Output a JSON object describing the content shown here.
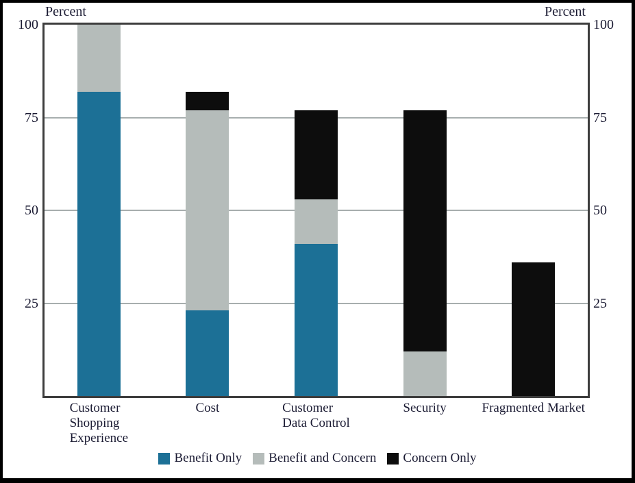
{
  "page": {
    "background_color": "#ffffff",
    "frame_color": "#000000",
    "text_color": "#1b1b33"
  },
  "chart_data": {
    "type": "bar",
    "stacked": true,
    "title": "",
    "ylabel_left": "Percent",
    "ylabel_right": "Percent",
    "ylim": [
      0,
      100
    ],
    "yticks": [
      25,
      50,
      75,
      100
    ],
    "grid": true,
    "gridline_color": "#a7aeae",
    "axis_border_color": "#3d3d3d",
    "legend_position": "bottom",
    "categories": [
      "Customer Shopping Experience",
      "Cost",
      "Customer Data Control",
      "Security",
      "Fragmented Market"
    ],
    "category_lines": [
      [
        "Customer",
        "Shopping",
        "Experience"
      ],
      [
        "Cost"
      ],
      [
        "Customer",
        "Data Control"
      ],
      [
        "Security"
      ],
      [
        "Fragmented Market"
      ]
    ],
    "series": [
      {
        "name": "Benefit Only",
        "color": "#1c7096",
        "values": [
          82,
          23,
          41,
          0,
          0
        ]
      },
      {
        "name": "Benefit and Concern",
        "color": "#b5bcba",
        "values": [
          18,
          54,
          12,
          12,
          0
        ]
      },
      {
        "name": "Concern Only",
        "color": "#0d0d0d",
        "values": [
          0,
          5,
          24,
          65,
          36
        ]
      }
    ],
    "stack_totals": [
      100,
      82,
      77,
      77,
      36
    ]
  }
}
